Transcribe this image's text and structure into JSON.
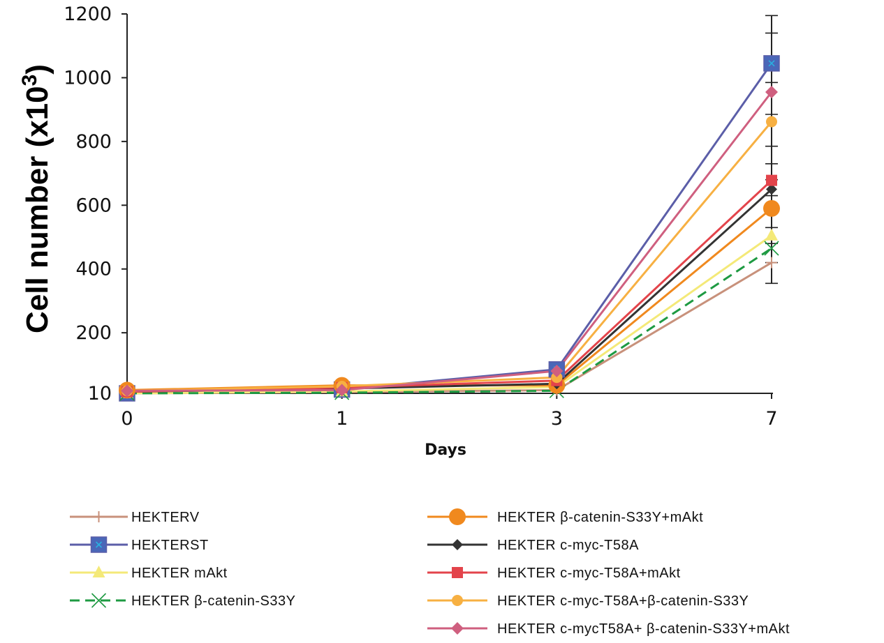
{
  "chart_data": {
    "type": "line",
    "xlabel": "Days",
    "ylabel": "Cell number (x10",
    "ylabel_superscript": "3",
    "ylabel_close": ")",
    "categories": [
      "0",
      "1",
      "3",
      "7"
    ],
    "y_ticks": [
      10,
      200,
      400,
      600,
      800,
      1000,
      1200
    ],
    "ylim": [
      10,
      1200
    ],
    "grid": false,
    "legend_position": "bottom",
    "series": [
      {
        "name": "HEKTERV",
        "values": [
          10,
          14,
          20,
          420
        ],
        "color": "#c8917b",
        "marker": "plus",
        "dash": false
      },
      {
        "name": "HEKTERST",
        "values": [
          10,
          22,
          85,
          1045
        ],
        "color": "#5b5ea8",
        "marker": "square",
        "dash": false
      },
      {
        "name": "HEKTER mAkt",
        "values": [
          10,
          16,
          30,
          505
        ],
        "color": "#f4e978",
        "marker": "triangle",
        "dash": false
      },
      {
        "name": "HEKTER β-catenin-S33Y",
        "values": [
          10,
          12,
          18,
          465
        ],
        "color": "#1e9a42",
        "marker": "x",
        "dash": true
      },
      {
        "name": "HEKTER β-catenin-S33Y+mAkt",
        "values": [
          20,
          35,
          35,
          590
        ],
        "color": "#f0891e",
        "marker": "circle",
        "dash": false
      },
      {
        "name": "HEKTER c-myc-T58A",
        "values": [
          15,
          25,
          40,
          650
        ],
        "color": "#333333",
        "marker": "diamond",
        "dash": false
      },
      {
        "name": "HEKTER c-myc-T58A+mAkt",
        "values": [
          15,
          28,
          50,
          678
        ],
        "color": "#e3444b",
        "marker": "square-small",
        "dash": false
      },
      {
        "name": "HEKTER c-myc-T58A+β-catenin-S33Y",
        "values": [
          18,
          32,
          60,
          862
        ],
        "color": "#f7b042",
        "marker": "circle-small",
        "dash": false
      },
      {
        "name": "HEKTER c-mycT58A+ β-catenin-S33Y+mAkt",
        "values": [
          18,
          20,
          80,
          955
        ],
        "color": "#cf5f7f",
        "marker": "diamond-small",
        "dash": false
      }
    ],
    "error_bars": {
      "category": "7",
      "ticks": [
        1195,
        1140,
        1040,
        985,
        885,
        785,
        730,
        680,
        630,
        580,
        530,
        480,
        420,
        355
      ]
    }
  }
}
